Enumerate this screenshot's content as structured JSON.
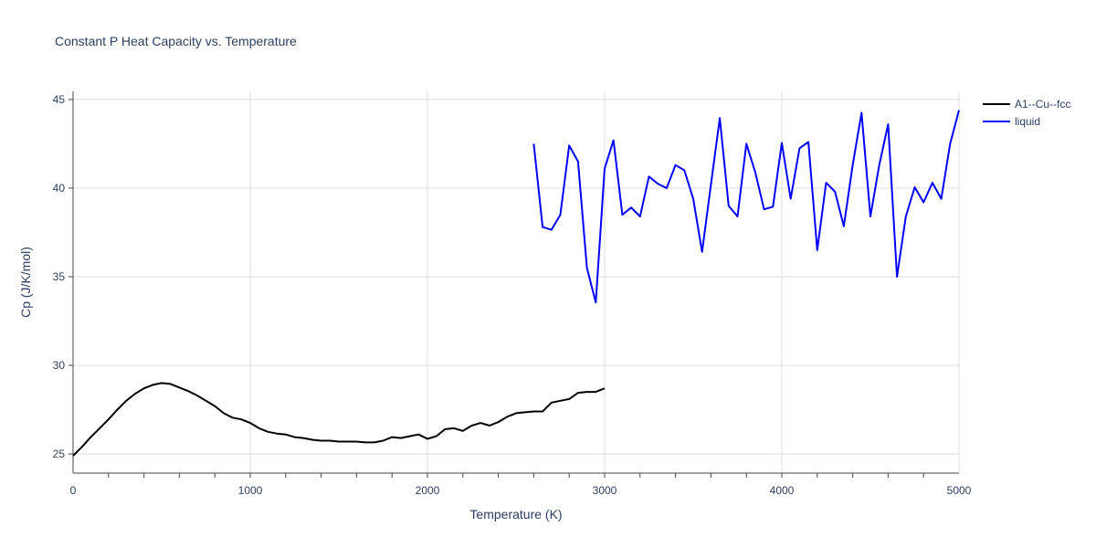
{
  "chart_data": {
    "type": "line",
    "title": "Constant P Heat Capacity vs. Temperature",
    "xlabel": "Temperature (K)",
    "ylabel": "Cp (J/K/mol)",
    "xlim": [
      0,
      5000
    ],
    "ylim": [
      23.92,
      45.46
    ],
    "xticks": [
      0,
      1000,
      2000,
      3000,
      4000,
      5000
    ],
    "yticks": [
      25,
      30,
      35,
      40,
      45
    ],
    "grid": true,
    "legend": "top-right",
    "series": [
      {
        "name": "A1--Cu--fcc",
        "color": "#000000",
        "x": [
          0,
          50,
          100,
          150,
          200,
          250,
          300,
          350,
          400,
          450,
          500,
          550,
          600,
          650,
          700,
          750,
          800,
          850,
          900,
          950,
          1000,
          1050,
          1100,
          1150,
          1200,
          1250,
          1300,
          1350,
          1400,
          1450,
          1500,
          1550,
          1600,
          1650,
          1700,
          1750,
          1800,
          1850,
          1900,
          1950,
          2000,
          2050,
          2100,
          2150,
          2200,
          2250,
          2300,
          2350,
          2400,
          2450,
          2500,
          2550,
          2600,
          2650,
          2700,
          2750,
          2800,
          2850,
          2900,
          2950,
          3000
        ],
        "y": [
          24.9,
          25.4,
          25.95,
          26.45,
          26.95,
          27.5,
          28.0,
          28.4,
          28.7,
          28.9,
          29.0,
          28.95,
          28.75,
          28.55,
          28.3,
          28.0,
          27.7,
          27.3,
          27.05,
          26.95,
          26.75,
          26.45,
          26.25,
          26.15,
          26.1,
          25.95,
          25.9,
          25.8,
          25.75,
          25.75,
          25.7,
          25.7,
          25.7,
          25.65,
          25.65,
          25.75,
          25.95,
          25.9,
          26.0,
          26.1,
          25.85,
          26.0,
          26.4,
          26.45,
          26.3,
          26.6,
          26.75,
          26.6,
          26.8,
          27.1,
          27.3,
          27.35,
          27.4,
          27.4,
          27.9,
          28.0,
          28.1,
          28.45,
          28.5,
          28.5,
          28.7
        ]
      },
      {
        "name": "liquid",
        "color": "#0000ff",
        "x": [
          2600,
          2650,
          2700,
          2750,
          2800,
          2850,
          2900,
          2950,
          3000,
          3050,
          3100,
          3150,
          3200,
          3250,
          3300,
          3350,
          3400,
          3450,
          3500,
          3550,
          3600,
          3650,
          3700,
          3750,
          3800,
          3850,
          3900,
          3950,
          4000,
          4050,
          4100,
          4150,
          4200,
          4250,
          4300,
          4350,
          4400,
          4450,
          4500,
          4550,
          4600,
          4650,
          4700,
          4750,
          4800,
          4850,
          4900,
          4950,
          5000
        ],
        "y": [
          42.5,
          37.8,
          37.65,
          38.5,
          42.4,
          41.5,
          35.5,
          33.55,
          41.1,
          42.7,
          38.5,
          38.9,
          38.4,
          40.65,
          40.25,
          40.0,
          41.3,
          41.0,
          39.4,
          36.4,
          40.2,
          43.95,
          39.0,
          38.4,
          42.5,
          40.9,
          38.8,
          38.95,
          42.55,
          39.4,
          42.25,
          42.6,
          36.5,
          40.3,
          39.8,
          37.85,
          41.3,
          44.25,
          38.4,
          41.3,
          43.6,
          35.0,
          38.4,
          40.05,
          39.2,
          40.3,
          39.4,
          42.5,
          44.4
        ]
      }
    ]
  }
}
